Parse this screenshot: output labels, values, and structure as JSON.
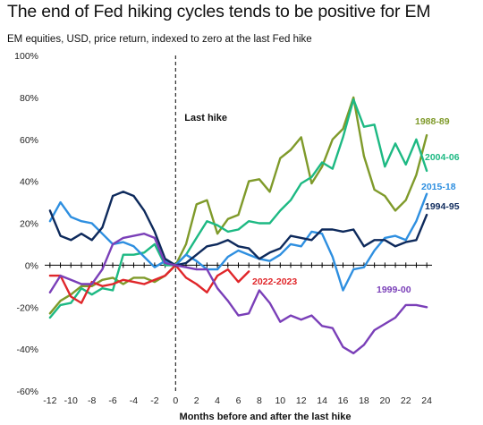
{
  "header": {
    "title": "The end of Fed hiking cycles tends to be positive for EM",
    "subtitle": "EM equities, USD, price return, indexed to zero at the last Fed hike"
  },
  "chart_data": {
    "type": "line",
    "xlabel": "Months before and after the last hike",
    "ylabel": "",
    "xlim": [
      -12.5,
      24.5
    ],
    "ylim": [
      -60,
      100
    ],
    "x_ticks": [
      -12,
      -10,
      -8,
      -6,
      -4,
      -2,
      0,
      2,
      4,
      6,
      8,
      10,
      12,
      14,
      16,
      18,
      20,
      22,
      24
    ],
    "y_ticks": [
      100,
      80,
      60,
      40,
      20,
      0,
      -20,
      -40,
      -60
    ],
    "y_tick_labels": [
      "100%",
      "80%",
      "60%",
      "40%",
      "20%",
      "0%",
      "-20%",
      "-40%",
      "-60%"
    ],
    "x_tick_labels": [
      "-12",
      "-10",
      "-8",
      "-6",
      "-4",
      "-2",
      "0",
      "2",
      "4",
      "6",
      "8",
      "10",
      "12",
      "14",
      "16",
      "18",
      "20",
      "22",
      "24"
    ],
    "grid": false,
    "annotations": [
      {
        "text": "Last hike",
        "x": 0
      }
    ],
    "series": [
      {
        "name": "1988-89",
        "color": "#7f9a2a",
        "x": [
          -12,
          -11,
          -10,
          -9,
          -8,
          -7,
          -6,
          -5,
          -4,
          -3,
          -2,
          -1,
          0,
          1,
          2,
          3,
          4,
          5,
          6,
          7,
          8,
          9,
          10,
          11,
          12,
          13,
          14,
          15,
          16,
          17,
          18,
          19,
          20,
          21,
          22,
          23,
          24
        ],
        "values": [
          -23,
          -17,
          -14,
          -10,
          -10,
          -7,
          -6,
          -9,
          -6,
          -6,
          -8,
          -5,
          0,
          10,
          29,
          31,
          15,
          22,
          24,
          40,
          41,
          35,
          51,
          55,
          61,
          39,
          47,
          60,
          65,
          80,
          52,
          36,
          33,
          26,
          31,
          43,
          62
        ]
      },
      {
        "name": "2004-06",
        "color": "#1db983",
        "x": [
          -12,
          -11,
          -10,
          -9,
          -8,
          -7,
          -6,
          -5,
          -4,
          -3,
          -2,
          -1,
          0,
          1,
          2,
          3,
          4,
          5,
          6,
          7,
          8,
          9,
          10,
          11,
          12,
          13,
          14,
          15,
          16,
          17,
          18,
          19,
          20,
          21,
          22,
          23,
          24
        ],
        "values": [
          -25,
          -19,
          -18,
          -11,
          -14,
          -11,
          -12,
          5,
          5,
          6,
          10,
          0,
          0,
          5,
          13,
          21,
          19,
          16,
          17,
          21,
          20,
          20,
          26,
          31,
          39,
          42,
          49,
          46,
          61,
          79,
          66,
          67,
          47,
          58,
          48,
          60,
          45
        ]
      },
      {
        "name": "2015-18",
        "color": "#2e8fe0",
        "x": [
          -12,
          -11,
          -10,
          -9,
          -8,
          -7,
          -6,
          -5,
          -4,
          -3,
          -2,
          -1,
          0,
          1,
          2,
          3,
          4,
          5,
          6,
          7,
          8,
          9,
          10,
          11,
          12,
          13,
          14,
          15,
          16,
          17,
          18,
          19,
          20,
          21,
          22,
          23,
          24
        ],
        "values": [
          21,
          30,
          23,
          21,
          20,
          15,
          10,
          11,
          9,
          4,
          -1,
          2,
          0,
          5,
          2,
          -2,
          -2,
          4,
          7,
          5,
          3,
          2,
          5,
          10,
          9,
          16,
          15,
          4,
          -12,
          -2,
          -1,
          7,
          13,
          14,
          12,
          21,
          34
        ]
      },
      {
        "name": "1994-95",
        "color": "#0e2a5c",
        "x": [
          -12,
          -11,
          -10,
          -9,
          -8,
          -7,
          -6,
          -5,
          -4,
          -3,
          -2,
          -1,
          0,
          1,
          2,
          3,
          4,
          5,
          6,
          7,
          8,
          9,
          10,
          11,
          12,
          13,
          14,
          15,
          16,
          17,
          18,
          19,
          20,
          21,
          22,
          23,
          24
        ],
        "values": [
          26,
          14,
          12,
          15,
          12,
          18,
          33,
          35,
          33,
          26,
          16,
          3,
          0,
          1,
          5,
          9,
          10,
          12,
          9,
          8,
          3,
          6,
          8,
          14,
          13,
          12,
          17,
          17,
          16,
          17,
          9,
          12,
          12,
          9,
          11,
          12,
          24
        ]
      },
      {
        "name": "2022-2023",
        "color": "#e0262a",
        "x": [
          -12,
          -11,
          -10,
          -9,
          -8,
          -7,
          -6,
          -5,
          -4,
          -3,
          -2,
          -1,
          0,
          1,
          2,
          3,
          4,
          5,
          6,
          7
        ],
        "values": [
          -5,
          -5,
          -15,
          -18,
          -8,
          -10,
          -9,
          -7,
          -8,
          -9,
          -7,
          -5,
          0,
          -6,
          -9,
          -13,
          -5,
          -2,
          -8,
          -3
        ]
      },
      {
        "name": "1999-00",
        "color": "#7a3fb8",
        "x": [
          -12,
          -11,
          -10,
          -9,
          -8,
          -7,
          -6,
          -5,
          -4,
          -3,
          -2,
          -1,
          0,
          1,
          2,
          3,
          4,
          5,
          6,
          7,
          8,
          9,
          10,
          11,
          12,
          13,
          14,
          15,
          16,
          17,
          18,
          19,
          20,
          21,
          22,
          23,
          24
        ],
        "values": [
          -13,
          -5,
          -7,
          -9,
          -9,
          -2,
          10,
          13,
          14,
          15,
          13,
          1,
          0,
          -1,
          -2,
          -2,
          -11,
          -17,
          -24,
          -23,
          -12,
          -18,
          -27,
          -24,
          -26,
          -24,
          -29,
          -30,
          -39,
          -42,
          -38,
          -31,
          -28,
          -25,
          -19,
          -19,
          -20
        ]
      }
    ]
  }
}
